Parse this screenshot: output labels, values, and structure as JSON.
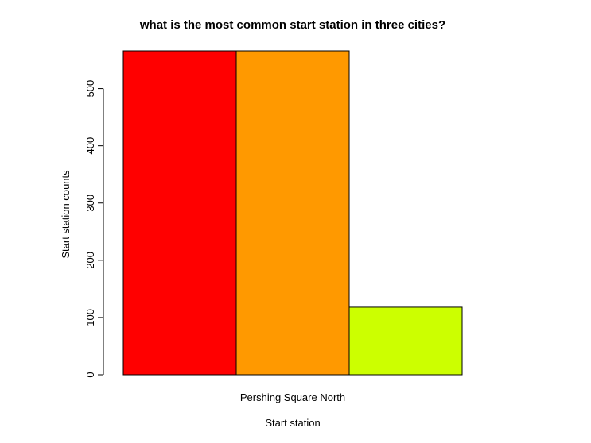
{
  "chart_data": {
    "type": "bar",
    "title": "what is the most common start station in three cities?",
    "xlabel": "Start station",
    "ylabel": "Start station counts",
    "categories": [
      "Pershing Square North"
    ],
    "series": [
      {
        "values": [
          566
        ],
        "color": "#FF0000"
      },
      {
        "values": [
          566
        ],
        "color": "#FF9900"
      },
      {
        "values": [
          118
        ],
        "color": "#CCFF00"
      }
    ],
    "ylim": [
      0,
      566
    ],
    "yticks": [
      0,
      100,
      200,
      300,
      400,
      500
    ],
    "grid": false,
    "legend": "none"
  }
}
